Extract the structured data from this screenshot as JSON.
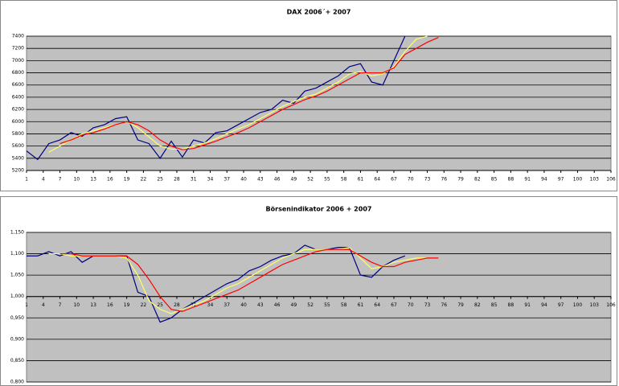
{
  "chart_data": [
    {
      "type": "line",
      "title": "DAX 2006´+ 2007",
      "x": [
        1,
        3,
        5,
        7,
        9,
        11,
        13,
        15,
        17,
        19,
        21,
        23,
        25,
        27,
        29,
        31,
        33,
        35,
        37,
        39,
        41,
        43,
        45,
        47,
        49,
        51,
        53,
        55,
        57,
        59,
        61,
        63,
        65,
        67,
        69,
        71,
        73,
        75
      ],
      "series": [
        {
          "color": "#000080",
          "values": [
            5520,
            5380,
            5640,
            5700,
            5820,
            5760,
            5900,
            5950,
            6050,
            6080,
            5700,
            5640,
            5400,
            5680,
            5420,
            5700,
            5650,
            5820,
            5850,
            5950,
            6050,
            6150,
            6200,
            6350,
            6300,
            6500,
            6550,
            6650,
            6750,
            6900,
            6950,
            6650,
            6600,
            7000,
            7400,
            null,
            null,
            null
          ]
        },
        {
          "color": "#ffff66",
          "values": [
            null,
            null,
            5500,
            5600,
            5700,
            5800,
            5850,
            5900,
            5950,
            6000,
            5900,
            5750,
            5600,
            5550,
            5550,
            5600,
            5650,
            5720,
            5800,
            5880,
            5950,
            6050,
            6150,
            6250,
            6330,
            6400,
            6450,
            6550,
            6650,
            6780,
            6820,
            6750,
            6780,
            6900,
            7150,
            7350,
            7400,
            null
          ]
        },
        {
          "color": "#ff0000",
          "values": [
            null,
            null,
            null,
            5640,
            5700,
            5780,
            5820,
            5880,
            5950,
            6000,
            5950,
            5850,
            5700,
            5600,
            5540,
            5560,
            5620,
            5680,
            5750,
            5820,
            5900,
            6000,
            6100,
            6200,
            6280,
            6360,
            6420,
            6500,
            6600,
            6700,
            6800,
            6800,
            6800,
            6880,
            7100,
            7200,
            7300,
            7380
          ]
        }
      ],
      "xlim": [
        1,
        106
      ],
      "xticks": [
        1,
        4,
        7,
        10,
        13,
        16,
        19,
        22,
        25,
        28,
        31,
        34,
        37,
        40,
        43,
        46,
        49,
        52,
        55,
        58,
        61,
        64,
        67,
        70,
        73,
        76,
        79,
        82,
        85,
        88,
        91,
        94,
        97,
        100,
        103,
        106
      ],
      "ylim": [
        5200,
        7400
      ],
      "yticks": [
        5200,
        5400,
        5600,
        5800,
        6000,
        6200,
        6400,
        6600,
        6800,
        7000,
        7200,
        7400
      ],
      "grid": true
    },
    {
      "type": "line",
      "title": "Börsenindikator 2006 + 2007",
      "x": [
        1,
        3,
        5,
        7,
        9,
        11,
        13,
        15,
        17,
        19,
        21,
        23,
        25,
        27,
        29,
        31,
        33,
        35,
        37,
        39,
        41,
        43,
        45,
        47,
        49,
        51,
        53,
        55,
        57,
        59,
        61,
        63,
        65,
        67,
        69,
        71,
        73,
        75
      ],
      "series": [
        {
          "color": "#000080",
          "values": [
            1.095,
            1.095,
            1.105,
            1.095,
            1.105,
            1.08,
            1.095,
            1.095,
            1.095,
            1.095,
            1.01,
            1.0,
            0.94,
            0.95,
            0.97,
            0.985,
            1.0,
            1.015,
            1.03,
            1.04,
            1.06,
            1.07,
            1.085,
            1.095,
            1.1,
            1.12,
            1.11,
            1.11,
            1.115,
            1.115,
            1.05,
            1.045,
            1.07,
            1.085,
            1.095,
            null,
            null,
            null
          ]
        },
        {
          "color": "#ffff66",
          "values": [
            null,
            null,
            1.1,
            1.1,
            1.095,
            1.095,
            1.095,
            1.095,
            1.095,
            1.09,
            1.05,
            0.99,
            0.97,
            0.96,
            0.97,
            0.98,
            0.99,
            1.005,
            1.02,
            1.03,
            1.045,
            1.06,
            1.075,
            1.09,
            1.1,
            1.11,
            1.11,
            1.11,
            1.11,
            1.115,
            1.09,
            1.065,
            1.07,
            1.08,
            1.085,
            1.09,
            1.09,
            null
          ]
        },
        {
          "color": "#ff0000",
          "values": [
            null,
            null,
            null,
            1.1,
            1.1,
            1.095,
            1.095,
            1.095,
            1.095,
            1.095,
            1.075,
            1.04,
            1.0,
            0.97,
            0.965,
            0.975,
            0.985,
            0.995,
            1.005,
            1.015,
            1.03,
            1.045,
            1.06,
            1.075,
            1.085,
            1.095,
            1.105,
            1.11,
            1.11,
            1.11,
            1.095,
            1.08,
            1.07,
            1.07,
            1.08,
            1.085,
            1.09,
            1.09
          ]
        }
      ],
      "xlim": [
        1,
        106
      ],
      "xticks": [
        1,
        4,
        7,
        10,
        13,
        16,
        19,
        22,
        25,
        28,
        31,
        34,
        37,
        40,
        43,
        46,
        49,
        52,
        55,
        58,
        61,
        64,
        67,
        70,
        73,
        76,
        79,
        82,
        85,
        88,
        91,
        94,
        97,
        100,
        103,
        106
      ],
      "x_axis_crossing": 1,
      "ylim": [
        0.8,
        1.15
      ],
      "yticks": [
        {
          "value": 0.8,
          "label": "0,800"
        },
        {
          "value": 0.85,
          "label": "0,850"
        },
        {
          "value": 0.9,
          "label": "0,900"
        },
        {
          "value": 0.95,
          "label": "0,950"
        },
        {
          "value": 1,
          "label": "1,000"
        },
        {
          "value": 1.05,
          "label": "1,050"
        },
        {
          "value": 1.1,
          "label": "1,100"
        },
        {
          "value": 1.15,
          "label": "1,150"
        }
      ],
      "grid": true
    }
  ]
}
